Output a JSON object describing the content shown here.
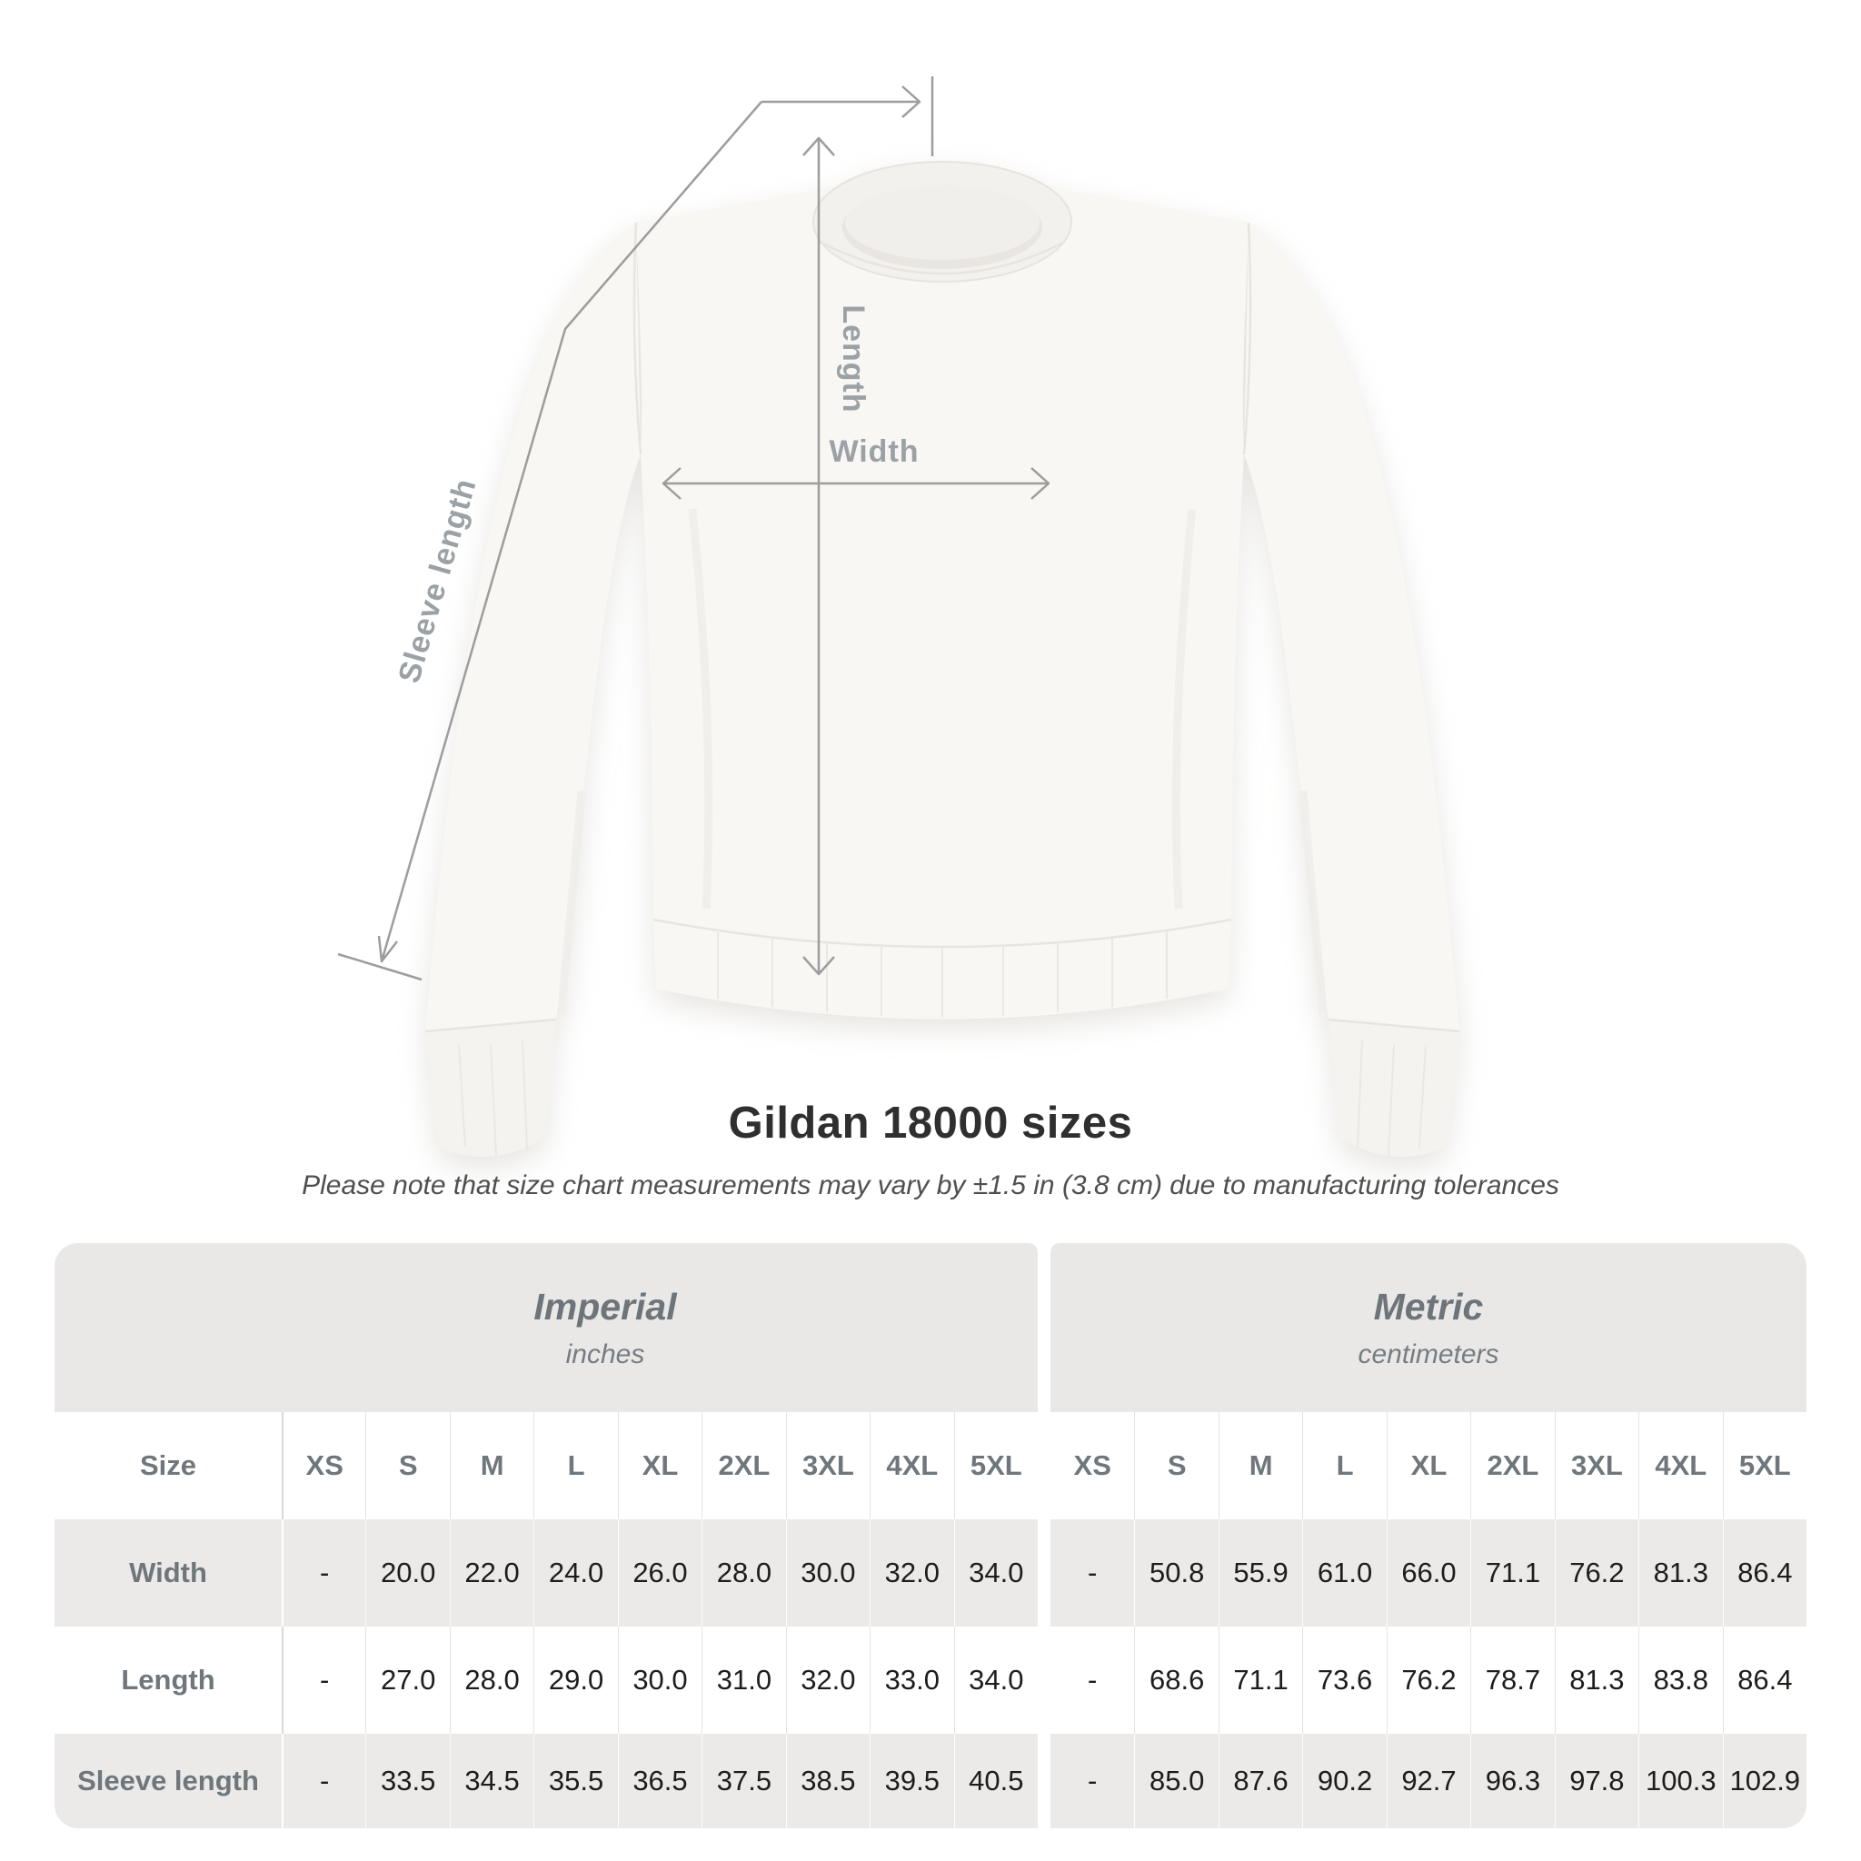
{
  "title": "Gildan 18000 sizes",
  "subtitle": "Please note that size chart measurements may vary by ±1.5 in (3.8 cm) due to manufacturing tolerances",
  "diagram": {
    "labels": {
      "length": "Length",
      "width": "Width",
      "sleeve": "Sleeve length"
    }
  },
  "table": {
    "group_headers": [
      {
        "label": "Imperial",
        "sublabel": "inches"
      },
      {
        "label": "Metric",
        "sublabel": "centimeters"
      }
    ],
    "size_header": "Size",
    "sizes": [
      "XS",
      "S",
      "M",
      "L",
      "XL",
      "2XL",
      "3XL",
      "4XL",
      "5XL"
    ],
    "rows": [
      {
        "label": "Width",
        "imperial": [
          "-",
          "20.0",
          "22.0",
          "24.0",
          "26.0",
          "28.0",
          "30.0",
          "32.0",
          "34.0"
        ],
        "metric": [
          "-",
          "50.8",
          "55.9",
          "61.0",
          "66.0",
          "71.1",
          "76.2",
          "81.3",
          "86.4"
        ]
      },
      {
        "label": "Length",
        "imperial": [
          "-",
          "27.0",
          "28.0",
          "29.0",
          "30.0",
          "31.0",
          "32.0",
          "33.0",
          "34.0"
        ],
        "metric": [
          "-",
          "68.6",
          "71.1",
          "73.6",
          "76.2",
          "78.7",
          "81.3",
          "83.8",
          "86.4"
        ]
      },
      {
        "label": "Sleeve length",
        "imperial": [
          "-",
          "33.5",
          "34.5",
          "35.5",
          "36.5",
          "37.5",
          "38.5",
          "39.5",
          "40.5"
        ],
        "metric": [
          "-",
          "85.0",
          "87.6",
          "90.2",
          "92.7",
          "96.3",
          "97.8",
          "100.3",
          "102.9"
        ]
      }
    ]
  },
  "chart_data": {
    "type": "table",
    "title": "Gildan 18000 sizes",
    "note": "Please note that size chart measurements may vary by ±1.5 in (3.8 cm) due to manufacturing tolerances",
    "units": [
      "inches",
      "centimeters"
    ],
    "categories": [
      "XS",
      "S",
      "M",
      "L",
      "XL",
      "2XL",
      "3XL",
      "4XL",
      "5XL"
    ],
    "series": [
      {
        "name": "Width (in)",
        "values": [
          null,
          20.0,
          22.0,
          24.0,
          26.0,
          28.0,
          30.0,
          32.0,
          34.0
        ]
      },
      {
        "name": "Length (in)",
        "values": [
          null,
          27.0,
          28.0,
          29.0,
          30.0,
          31.0,
          32.0,
          33.0,
          34.0
        ]
      },
      {
        "name": "Sleeve length (in)",
        "values": [
          null,
          33.5,
          34.5,
          35.5,
          36.5,
          37.5,
          38.5,
          39.5,
          40.5
        ]
      },
      {
        "name": "Width (cm)",
        "values": [
          null,
          50.8,
          55.9,
          61.0,
          66.0,
          71.1,
          76.2,
          81.3,
          86.4
        ]
      },
      {
        "name": "Length (cm)",
        "values": [
          null,
          68.6,
          71.1,
          73.6,
          76.2,
          78.7,
          81.3,
          83.8,
          86.4
        ]
      },
      {
        "name": "Sleeve length (cm)",
        "values": [
          null,
          85.0,
          87.6,
          90.2,
          92.7,
          96.3,
          97.8,
          100.3,
          102.9
        ]
      }
    ]
  },
  "colors": {
    "measure_line": "#9d9d9d",
    "diagram_label": "#9ba1a5",
    "band_bg": "#e9e8e7",
    "row_stripe_bg": "#ebeae9",
    "header_text": "#70777c",
    "value_text": "#1d1d1b",
    "title_text": "#2f2f2f",
    "garment_fill": "#f8f7f4"
  }
}
